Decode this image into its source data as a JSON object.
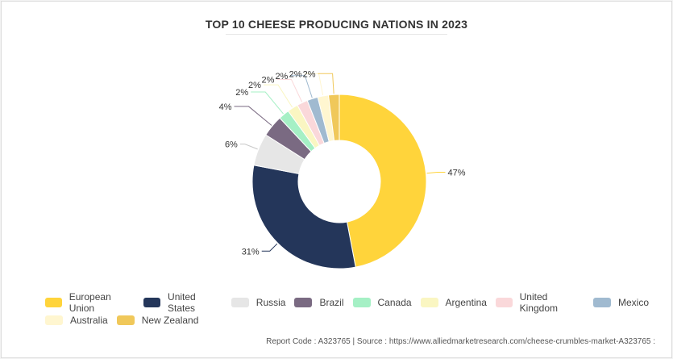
{
  "chart_data": {
    "type": "pie",
    "variant": "donut",
    "title": "TOP 10 CHEESE PRODUCING NATIONS IN 2023",
    "categories": [
      "European Union",
      "United States",
      "Russia",
      "Brazil",
      "Canada",
      "Argentina",
      "United Kingdom",
      "Mexico",
      "Australia",
      "New Zealand"
    ],
    "values": [
      47,
      31,
      6,
      4,
      2,
      2,
      2,
      2,
      2,
      2
    ],
    "data_labels": [
      "47%",
      "31%",
      "6%",
      "4%",
      "2%",
      "2%",
      "2%",
      "2%",
      "2%",
      "2%"
    ],
    "colors": [
      "#FFD43B",
      "#24365A",
      "#E6E6E6",
      "#7A6A82",
      "#A5F0C5",
      "#FAF6C2",
      "#FAD8DA",
      "#A0BAD0",
      "#FFF6D0",
      "#F0C85A"
    ],
    "legend_position": "bottom"
  },
  "footer": {
    "text": "Report Code : A323765  |  Source : https://www.alliedmarketresearch.com/cheese-crumbles-market-A323765 :"
  }
}
